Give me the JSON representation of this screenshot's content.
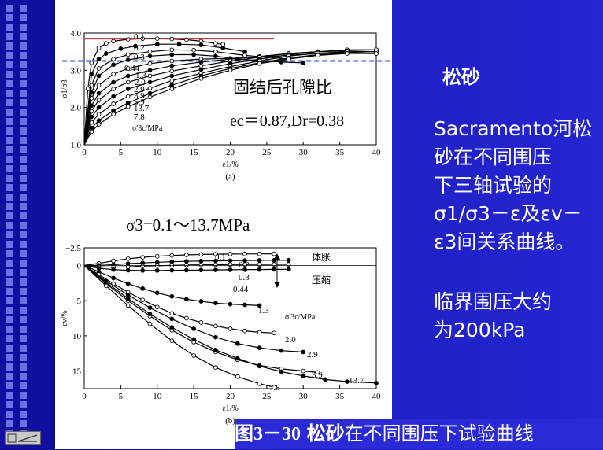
{
  "right_panel": {
    "title": "松砂",
    "description_line1": "Sacramento河松",
    "description_line2": "砂在不同围压",
    "description_line3": "下三轴试验的",
    "description_line4": "σ1/σ3－ε及εv－",
    "description_line5": "ε3间关系曲线。",
    "note_line1": "临界围压大约",
    "note_line2": "为200kPa"
  },
  "caption": {
    "figure_no": "图3－30",
    "bold_word": "松砂",
    "text": "在不同围压下试验曲线"
  },
  "overlay": {
    "label1": "固结后孔隙比",
    "label2": "ec＝0.87,Dr=0.38",
    "confining_range": "σ3=0.1～13.7MPa"
  },
  "colors": {
    "critical_peak_line": "#cc2222",
    "critical_state_line": "#1a4fd8",
    "accent_panel": "#2a2ad6"
  },
  "chart_data": [
    {
      "type": "line",
      "panel_label": "(a)",
      "ylabel": "σ1/σ3",
      "xlabel": "ε1/%",
      "legend_title": "σ'3c/MPa",
      "xlim": [
        0,
        40
      ],
      "ylim": [
        1.0,
        4.0
      ],
      "xticks": [
        0,
        5,
        10,
        15,
        20,
        25,
        30,
        35,
        40
      ],
      "yticks": [
        1.0,
        2.0,
        3.0,
        4.0
      ],
      "ref_lines": [
        {
          "y": 3.85,
          "x_range": [
            0,
            26
          ],
          "style": "solid-red"
        },
        {
          "y": 3.25,
          "x_range": [
            -3,
            42
          ],
          "style": "dashed-blue"
        }
      ],
      "series": [
        {
          "name": "0.1",
          "x": [
            0,
            0.5,
            1,
            2,
            3,
            4,
            6,
            8,
            10,
            12,
            14,
            16,
            18,
            19
          ],
          "y": [
            1.0,
            2.5,
            3.2,
            3.6,
            3.72,
            3.78,
            3.83,
            3.85,
            3.85,
            3.84,
            3.82,
            3.78,
            3.72,
            3.7
          ],
          "marker": "open"
        },
        {
          "name": "0.2",
          "x": [
            0,
            1,
            2,
            3,
            5,
            7,
            10,
            13,
            16,
            19,
            22
          ],
          "y": [
            1.0,
            2.9,
            3.3,
            3.45,
            3.58,
            3.65,
            3.7,
            3.7,
            3.68,
            3.6,
            3.5
          ],
          "marker": "filled"
        },
        {
          "name": "0.3",
          "x": [
            0,
            1,
            2,
            4,
            6,
            9,
            12,
            15,
            18,
            22,
            25,
            28
          ],
          "y": [
            1.0,
            2.6,
            3.05,
            3.3,
            3.42,
            3.5,
            3.55,
            3.54,
            3.5,
            3.4,
            3.35,
            3.3
          ],
          "marker": "open"
        },
        {
          "name": "0.44",
          "x": [
            0,
            1,
            2,
            4,
            6,
            9,
            12,
            15,
            18,
            21,
            24,
            27,
            30
          ],
          "y": [
            1.0,
            2.4,
            2.85,
            3.15,
            3.28,
            3.38,
            3.42,
            3.42,
            3.38,
            3.3,
            3.26,
            3.22,
            3.2
          ],
          "marker": "filled"
        },
        {
          "name": "1.3",
          "x": [
            0,
            1,
            2,
            4,
            6,
            9,
            12,
            16,
            20,
            24,
            28,
            32,
            36,
            40
          ],
          "y": [
            1.0,
            2.25,
            2.6,
            2.9,
            3.05,
            3.18,
            3.25,
            3.3,
            3.32,
            3.35,
            3.4,
            3.45,
            3.48,
            3.5
          ],
          "marker": "open"
        },
        {
          "name": "2.0",
          "x": [
            0,
            1,
            2,
            4,
            6,
            9,
            12,
            16,
            20,
            24,
            28,
            32,
            36,
            40
          ],
          "y": [
            1.0,
            2.05,
            2.38,
            2.68,
            2.85,
            3.0,
            3.12,
            3.22,
            3.3,
            3.37,
            3.45,
            3.5,
            3.55,
            3.55
          ],
          "marker": "filled"
        },
        {
          "name": "2.9",
          "x": [
            0,
            1,
            2,
            4,
            6,
            9,
            12,
            16,
            20,
            24,
            28,
            32,
            36,
            40
          ],
          "y": [
            1.0,
            1.9,
            2.2,
            2.5,
            2.68,
            2.85,
            2.98,
            3.12,
            3.25,
            3.35,
            3.45,
            3.5,
            3.55,
            3.55
          ],
          "marker": "open"
        },
        {
          "name": "3.9",
          "x": [
            0,
            1,
            2,
            4,
            6,
            9,
            12,
            16,
            20,
            24,
            28,
            32,
            36,
            40
          ],
          "y": [
            1.0,
            1.75,
            2.0,
            2.3,
            2.5,
            2.68,
            2.85,
            3.02,
            3.18,
            3.3,
            3.42,
            3.5,
            3.52,
            3.5
          ],
          "marker": "filled"
        },
        {
          "name": "5.9",
          "x": [
            0,
            1,
            2,
            4,
            6,
            9,
            12,
            16,
            20,
            24,
            28,
            32,
            36,
            40
          ],
          "y": [
            1.0,
            1.6,
            1.82,
            2.1,
            2.3,
            2.52,
            2.72,
            2.92,
            3.1,
            3.25,
            3.38,
            3.46,
            3.5,
            3.5
          ],
          "marker": "open"
        },
        {
          "name": "13.7",
          "x": [
            0,
            1,
            2,
            4,
            6,
            9,
            12,
            16,
            20,
            24,
            28,
            32,
            36,
            40
          ],
          "y": [
            1.0,
            1.45,
            1.65,
            1.92,
            2.12,
            2.38,
            2.6,
            2.85,
            3.05,
            3.2,
            3.33,
            3.42,
            3.46,
            3.45
          ],
          "marker": "filled"
        },
        {
          "name": "7.8",
          "x": [
            0,
            1,
            2,
            4,
            6,
            9,
            12,
            16,
            20,
            24,
            28,
            32,
            36,
            40
          ],
          "y": [
            1.0,
            1.35,
            1.55,
            1.82,
            2.02,
            2.28,
            2.5,
            2.78,
            3.0,
            3.18,
            3.3,
            3.4,
            3.45,
            3.45
          ],
          "marker": "open"
        }
      ]
    },
    {
      "type": "line",
      "panel_label": "(b)",
      "ylabel": "εv/%",
      "xlabel": "ε1/%",
      "legend_title": "σ'3c/MPa",
      "xlim": [
        0,
        40
      ],
      "ylim": [
        -2.5,
        17.5
      ],
      "y_inverted": true,
      "xticks": [
        0,
        5,
        10,
        15,
        20,
        25,
        30,
        35,
        40
      ],
      "yticks": [
        -2.5,
        0,
        5,
        10,
        15
      ],
      "annotations": {
        "dilation": "体胀",
        "compression": "压缩"
      },
      "series": [
        {
          "name": "0.1",
          "x": [
            0,
            2,
            4,
            6,
            8,
            10,
            12,
            14,
            16,
            18,
            20,
            22,
            24,
            26
          ],
          "y": [
            0,
            -0.3,
            -0.65,
            -0.95,
            -1.15,
            -1.3,
            -1.42,
            -1.5,
            -1.56,
            -1.6,
            -1.62,
            -1.63,
            -1.64,
            -1.65
          ],
          "marker": "open"
        },
        {
          "name": "0.2",
          "x": [
            0,
            2,
            4,
            6,
            8,
            10,
            12,
            14,
            16,
            18,
            20,
            22,
            24,
            26,
            28
          ],
          "y": [
            0,
            0,
            -0.1,
            -0.25,
            -0.35,
            -0.45,
            -0.52,
            -0.58,
            -0.62,
            -0.65,
            -0.68,
            -0.7,
            -0.72,
            -0.73,
            -0.74
          ],
          "marker": "filled"
        },
        {
          "name": "0.3",
          "x": [
            0,
            2,
            4,
            6,
            8,
            10,
            12,
            14,
            16,
            18,
            20,
            22,
            24,
            26,
            28
          ],
          "y": [
            0,
            0.2,
            0.25,
            0.2,
            0.1,
            0.05,
            0,
            -0.05,
            -0.08,
            -0.1,
            -0.12,
            -0.13,
            -0.14,
            -0.15,
            -0.15
          ],
          "marker": "open"
        },
        {
          "name": "0.44",
          "x": [
            0,
            2,
            4,
            6,
            8,
            10,
            12,
            14,
            16,
            18,
            20,
            22,
            24,
            26,
            28
          ],
          "y": [
            0,
            0.4,
            0.6,
            0.7,
            0.72,
            0.72,
            0.7,
            0.68,
            0.66,
            0.64,
            0.62,
            0.6,
            0.58,
            0.56,
            0.55
          ],
          "marker": "filled"
        },
        {
          "name": "1.3",
          "x": [
            0,
            2,
            4,
            6,
            8,
            10,
            12,
            14,
            16,
            18,
            20,
            22,
            24
          ],
          "y": [
            0,
            0.9,
            1.8,
            2.6,
            3.3,
            3.9,
            4.4,
            4.8,
            5.1,
            5.35,
            5.5,
            5.6,
            5.7
          ],
          "marker": "filled"
        },
        {
          "name": "2.0",
          "x": [
            0,
            2,
            4,
            6,
            8,
            10,
            12,
            14,
            16,
            18,
            20,
            22,
            24,
            26
          ],
          "y": [
            0,
            1.3,
            2.6,
            3.8,
            4.9,
            5.9,
            6.8,
            7.5,
            8.1,
            8.6,
            9.0,
            9.3,
            9.5,
            9.6
          ],
          "marker": "open"
        },
        {
          "name": "2.9",
          "x": [
            0,
            3,
            6,
            9,
            12,
            15,
            18,
            21,
            24,
            27,
            30
          ],
          "y": [
            0,
            2.2,
            4.2,
            6.0,
            7.6,
            9.0,
            10.2,
            11.1,
            11.7,
            12.1,
            12.3
          ],
          "marker": "filled"
        },
        {
          "name": "3.9",
          "x": [
            0,
            3,
            6,
            9,
            12,
            15,
            18,
            21,
            24,
            27,
            30,
            32
          ],
          "y": [
            0,
            2.6,
            5.0,
            7.2,
            9.2,
            10.9,
            12.3,
            13.4,
            14.2,
            14.7,
            15.0,
            15.2
          ],
          "marker": "open"
        },
        {
          "name": "7.8",
          "x": [
            0,
            3,
            6,
            9,
            12,
            15,
            18,
            21,
            24,
            26
          ],
          "y": [
            0,
            2.9,
            5.7,
            8.3,
            10.7,
            12.8,
            14.5,
            15.8,
            16.8,
            17.3
          ],
          "marker": "open"
        },
        {
          "name": "13.7",
          "x": [
            0,
            3,
            6,
            9,
            12,
            15,
            18,
            21,
            24,
            27,
            30,
            33,
            36,
            40
          ],
          "y": [
            0,
            2.4,
            4.7,
            6.9,
            8.8,
            10.5,
            12.0,
            13.2,
            14.3,
            15.1,
            15.7,
            16.2,
            16.5,
            16.7
          ],
          "marker": "filled"
        }
      ]
    }
  ]
}
